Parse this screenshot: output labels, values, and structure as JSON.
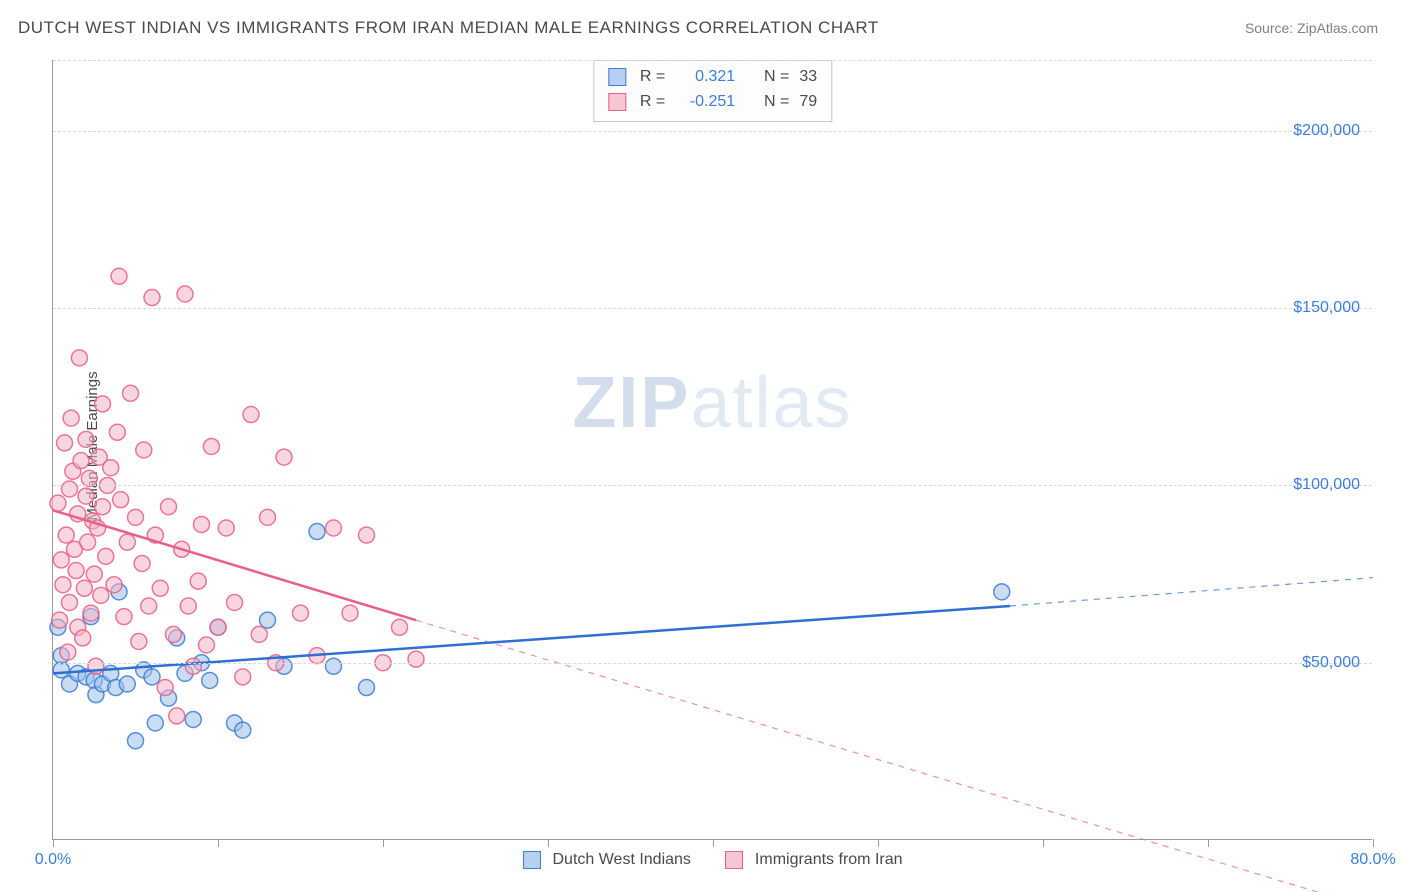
{
  "title": "DUTCH WEST INDIAN VS IMMIGRANTS FROM IRAN MEDIAN MALE EARNINGS CORRELATION CHART",
  "source": "Source: ZipAtlas.com",
  "y_axis_label": "Median Male Earnings",
  "watermark_a": "ZIP",
  "watermark_b": "atlas",
  "chart": {
    "type": "scatter-correlation",
    "background_color": "#ffffff",
    "grid_color": "#d8d8d8",
    "axis_color": "#9a9a9a",
    "text_color": "#4a4a4a",
    "value_color": "#3b7dd8",
    "xlim": [
      0,
      80
    ],
    "ylim": [
      0,
      220000
    ],
    "x_ticks": [
      0,
      10,
      20,
      30,
      40,
      50,
      60,
      70,
      80
    ],
    "x_tick_labels": {
      "0": "0.0%",
      "80": "80.0%"
    },
    "y_ticks": [
      50000,
      100000,
      150000,
      200000
    ],
    "y_tick_labels": {
      "50000": "$50,000",
      "100000": "$100,000",
      "150000": "$150,000",
      "200000": "$200,000"
    },
    "marker_radius": 8,
    "marker_stroke_width": 1.5,
    "marker_opacity": 0.55,
    "trend_line_width": 2.5,
    "trend_dash_width": 1.2
  },
  "series": {
    "blue": {
      "label": "Dutch West Indians",
      "swatch_fill": "#b7cff0",
      "swatch_stroke": "#3b7dd8",
      "marker_fill": "#9fbfe8",
      "marker_stroke": "#3b7dd8",
      "trend_color": "#2e6fd1",
      "r_label": "R =",
      "r_value": "0.321",
      "n_label": "N =",
      "n_value": "33",
      "trend_start": {
        "x": 0,
        "y": 47000
      },
      "trend_solid_end": {
        "x": 58,
        "y": 66000
      },
      "trend_end": {
        "x": 80,
        "y": 74000
      },
      "points": [
        {
          "x": 0.3,
          "y": 60000
        },
        {
          "x": 0.5,
          "y": 48000
        },
        {
          "x": 0.5,
          "y": 52000
        },
        {
          "x": 1.0,
          "y": 44000
        },
        {
          "x": 1.5,
          "y": 47000
        },
        {
          "x": 2.0,
          "y": 46000
        },
        {
          "x": 2.3,
          "y": 63000
        },
        {
          "x": 2.5,
          "y": 45000
        },
        {
          "x": 2.6,
          "y": 41000
        },
        {
          "x": 3.0,
          "y": 44000
        },
        {
          "x": 3.5,
          "y": 47000
        },
        {
          "x": 3.8,
          "y": 43000
        },
        {
          "x": 4.0,
          "y": 70000
        },
        {
          "x": 4.5,
          "y": 44000
        },
        {
          "x": 5.0,
          "y": 28000
        },
        {
          "x": 5.5,
          "y": 48000
        },
        {
          "x": 6.0,
          "y": 46000
        },
        {
          "x": 6.2,
          "y": 33000
        },
        {
          "x": 7.0,
          "y": 40000
        },
        {
          "x": 7.5,
          "y": 57000
        },
        {
          "x": 8.0,
          "y": 47000
        },
        {
          "x": 8.5,
          "y": 34000
        },
        {
          "x": 9.0,
          "y": 50000
        },
        {
          "x": 9.5,
          "y": 45000
        },
        {
          "x": 10.0,
          "y": 60000
        },
        {
          "x": 11.0,
          "y": 33000
        },
        {
          "x": 11.5,
          "y": 31000
        },
        {
          "x": 13.0,
          "y": 62000
        },
        {
          "x": 14.0,
          "y": 49000
        },
        {
          "x": 16.0,
          "y": 87000
        },
        {
          "x": 17.0,
          "y": 49000
        },
        {
          "x": 19.0,
          "y": 43000
        },
        {
          "x": 57.5,
          "y": 70000
        }
      ]
    },
    "pink": {
      "label": "Immigrants from Iran",
      "swatch_fill": "#f7c6d2",
      "swatch_stroke": "#e85f88",
      "marker_fill": "#f3b4c4",
      "marker_stroke": "#e85f88",
      "trend_color": "#e85f88",
      "r_label": "R =",
      "r_value": "-0.251",
      "n_label": "N =",
      "n_value": "79",
      "trend_start": {
        "x": 0,
        "y": 93000
      },
      "trend_solid_end": {
        "x": 22,
        "y": 62000
      },
      "trend_end": {
        "x": 79,
        "y": -18000
      },
      "points": [
        {
          "x": 0.3,
          "y": 95000
        },
        {
          "x": 0.4,
          "y": 62000
        },
        {
          "x": 0.5,
          "y": 79000
        },
        {
          "x": 0.6,
          "y": 72000
        },
        {
          "x": 0.7,
          "y": 112000
        },
        {
          "x": 0.8,
          "y": 86000
        },
        {
          "x": 0.9,
          "y": 53000
        },
        {
          "x": 1.0,
          "y": 67000
        },
        {
          "x": 1.0,
          "y": 99000
        },
        {
          "x": 1.1,
          "y": 119000
        },
        {
          "x": 1.2,
          "y": 104000
        },
        {
          "x": 1.3,
          "y": 82000
        },
        {
          "x": 1.4,
          "y": 76000
        },
        {
          "x": 1.5,
          "y": 92000
        },
        {
          "x": 1.5,
          "y": 60000
        },
        {
          "x": 1.6,
          "y": 136000
        },
        {
          "x": 1.7,
          "y": 107000
        },
        {
          "x": 1.8,
          "y": 57000
        },
        {
          "x": 1.9,
          "y": 71000
        },
        {
          "x": 2.0,
          "y": 97000
        },
        {
          "x": 2.0,
          "y": 113000
        },
        {
          "x": 2.1,
          "y": 84000
        },
        {
          "x": 2.2,
          "y": 102000
        },
        {
          "x": 2.3,
          "y": 64000
        },
        {
          "x": 2.4,
          "y": 90000
        },
        {
          "x": 2.5,
          "y": 75000
        },
        {
          "x": 2.6,
          "y": 49000
        },
        {
          "x": 2.7,
          "y": 88000
        },
        {
          "x": 2.8,
          "y": 108000
        },
        {
          "x": 2.9,
          "y": 69000
        },
        {
          "x": 3.0,
          "y": 94000
        },
        {
          "x": 3.0,
          "y": 123000
        },
        {
          "x": 3.2,
          "y": 80000
        },
        {
          "x": 3.3,
          "y": 100000
        },
        {
          "x": 3.5,
          "y": 105000
        },
        {
          "x": 3.7,
          "y": 72000
        },
        {
          "x": 3.9,
          "y": 115000
        },
        {
          "x": 4.0,
          "y": 159000
        },
        {
          "x": 4.1,
          "y": 96000
        },
        {
          "x": 4.3,
          "y": 63000
        },
        {
          "x": 4.5,
          "y": 84000
        },
        {
          "x": 4.7,
          "y": 126000
        },
        {
          "x": 5.0,
          "y": 91000
        },
        {
          "x": 5.2,
          "y": 56000
        },
        {
          "x": 5.4,
          "y": 78000
        },
        {
          "x": 5.5,
          "y": 110000
        },
        {
          "x": 5.8,
          "y": 66000
        },
        {
          "x": 6.0,
          "y": 153000
        },
        {
          "x": 6.2,
          "y": 86000
        },
        {
          "x": 6.5,
          "y": 71000
        },
        {
          "x": 6.8,
          "y": 43000
        },
        {
          "x": 7.0,
          "y": 94000
        },
        {
          "x": 7.3,
          "y": 58000
        },
        {
          "x": 7.5,
          "y": 35000
        },
        {
          "x": 7.8,
          "y": 82000
        },
        {
          "x": 8.0,
          "y": 154000
        },
        {
          "x": 8.2,
          "y": 66000
        },
        {
          "x": 8.5,
          "y": 49000
        },
        {
          "x": 8.8,
          "y": 73000
        },
        {
          "x": 9.0,
          "y": 89000
        },
        {
          "x": 9.3,
          "y": 55000
        },
        {
          "x": 9.6,
          "y": 111000
        },
        {
          "x": 10.0,
          "y": 60000
        },
        {
          "x": 10.5,
          "y": 88000
        },
        {
          "x": 11.0,
          "y": 67000
        },
        {
          "x": 11.5,
          "y": 46000
        },
        {
          "x": 12.0,
          "y": 120000
        },
        {
          "x": 12.5,
          "y": 58000
        },
        {
          "x": 13.0,
          "y": 91000
        },
        {
          "x": 13.5,
          "y": 50000
        },
        {
          "x": 14.0,
          "y": 108000
        },
        {
          "x": 15.0,
          "y": 64000
        },
        {
          "x": 16.0,
          "y": 52000
        },
        {
          "x": 17.0,
          "y": 88000
        },
        {
          "x": 18.0,
          "y": 64000
        },
        {
          "x": 19.0,
          "y": 86000
        },
        {
          "x": 20.0,
          "y": 50000
        },
        {
          "x": 21.0,
          "y": 60000
        },
        {
          "x": 22.0,
          "y": 51000
        }
      ]
    }
  }
}
